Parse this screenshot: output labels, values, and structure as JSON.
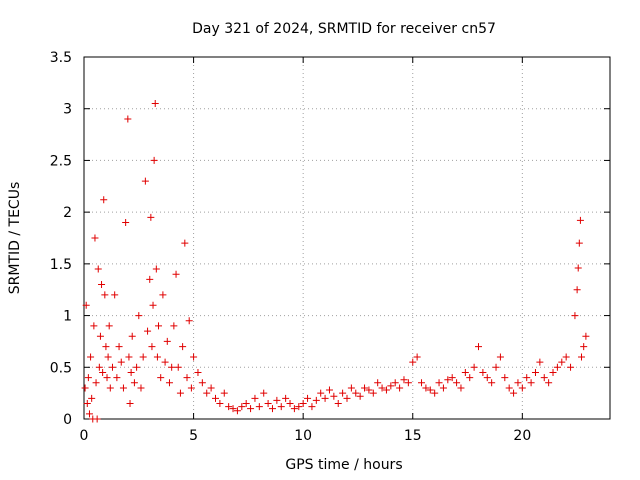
{
  "chart_data": {
    "type": "scatter",
    "title": "Day 321 of 2024, SRMTID for receiver cn57",
    "xlabel": "GPS time / hours",
    "ylabel": "SRMTID / TECUs",
    "xlim": [
      0,
      24
    ],
    "ylim": [
      0,
      3.5
    ],
    "x_ticks": [
      0,
      5,
      10,
      15,
      20
    ],
    "x_tick_labels": [
      "0",
      "5",
      "10",
      "15",
      "20"
    ],
    "y_ticks": [
      0,
      0.5,
      1,
      1.5,
      2,
      2.5,
      3,
      3.5
    ],
    "y_tick_labels": [
      "0",
      "0.5",
      "1",
      "1.5",
      "2",
      "2.5",
      "3",
      "3.5"
    ],
    "grid": true,
    "marker": "+",
    "color": "#e00000",
    "series": [
      {
        "name": "cn57",
        "x": [
          0.05,
          0.1,
          0.15,
          0.2,
          0.25,
          0.3,
          0.35,
          0.4,
          0.45,
          0.5,
          0.55,
          0.6,
          0.65,
          0.7,
          0.75,
          0.8,
          0.85,
          0.9,
          0.95,
          1.0,
          1.05,
          1.1,
          1.15,
          1.2,
          1.3,
          1.4,
          1.5,
          1.6,
          1.7,
          1.8,
          1.9,
          2.0,
          2.05,
          2.1,
          2.15,
          2.2,
          2.3,
          2.4,
          2.5,
          2.6,
          2.7,
          2.8,
          2.9,
          3.0,
          3.05,
          3.1,
          3.15,
          3.2,
          3.25,
          3.3,
          3.35,
          3.4,
          3.5,
          3.6,
          3.7,
          3.8,
          3.9,
          4.0,
          4.1,
          4.2,
          4.3,
          4.4,
          4.5,
          4.6,
          4.7,
          4.8,
          4.9,
          5.0,
          5.2,
          5.4,
          5.6,
          5.8,
          6.0,
          6.2,
          6.4,
          6.6,
          6.8,
          7.0,
          7.2,
          7.4,
          7.6,
          7.8,
          8.0,
          8.2,
          8.4,
          8.6,
          8.8,
          9.0,
          9.2,
          9.4,
          9.6,
          9.8,
          10.0,
          10.2,
          10.4,
          10.6,
          10.8,
          11.0,
          11.2,
          11.4,
          11.6,
          11.8,
          12.0,
          12.2,
          12.4,
          12.6,
          12.8,
          13.0,
          13.2,
          13.4,
          13.6,
          13.8,
          14.0,
          14.2,
          14.4,
          14.6,
          14.8,
          15.0,
          15.2,
          15.4,
          15.6,
          15.8,
          16.0,
          16.2,
          16.4,
          16.6,
          16.8,
          17.0,
          17.2,
          17.4,
          17.6,
          17.8,
          18.0,
          18.2,
          18.4,
          18.6,
          18.8,
          19.0,
          19.2,
          19.4,
          19.6,
          19.8,
          20.0,
          20.2,
          20.4,
          20.6,
          20.8,
          21.0,
          21.2,
          21.4,
          21.6,
          21.8,
          22.0,
          22.2,
          22.4,
          22.5,
          22.55,
          22.6,
          22.65,
          22.7,
          22.8,
          22.9
        ],
        "y": [
          0.3,
          1.1,
          0.15,
          0.4,
          0.05,
          0.6,
          0.2,
          0.0,
          0.9,
          1.75,
          0.35,
          0.0,
          1.45,
          0.5,
          0.8,
          1.3,
          0.45,
          2.12,
          1.2,
          0.7,
          0.4,
          0.6,
          0.9,
          0.3,
          0.5,
          1.2,
          0.4,
          0.7,
          0.55,
          0.3,
          1.9,
          2.9,
          0.6,
          0.15,
          0.45,
          0.8,
          0.35,
          0.5,
          1.0,
          0.3,
          0.6,
          2.3,
          0.85,
          1.35,
          1.95,
          0.7,
          1.1,
          2.5,
          3.05,
          1.45,
          0.6,
          0.9,
          0.4,
          1.2,
          0.55,
          0.75,
          0.35,
          0.5,
          0.9,
          1.4,
          0.5,
          0.25,
          0.7,
          1.7,
          0.4,
          0.95,
          0.3,
          0.6,
          0.45,
          0.35,
          0.25,
          0.3,
          0.2,
          0.15,
          0.25,
          0.12,
          0.1,
          0.08,
          0.12,
          0.15,
          0.1,
          0.2,
          0.12,
          0.25,
          0.15,
          0.1,
          0.18,
          0.12,
          0.2,
          0.15,
          0.1,
          0.12,
          0.15,
          0.2,
          0.12,
          0.18,
          0.25,
          0.2,
          0.28,
          0.22,
          0.15,
          0.25,
          0.2,
          0.3,
          0.25,
          0.22,
          0.3,
          0.28,
          0.25,
          0.35,
          0.3,
          0.28,
          0.32,
          0.35,
          0.3,
          0.38,
          0.35,
          0.55,
          0.6,
          0.35,
          0.3,
          0.28,
          0.25,
          0.35,
          0.3,
          0.38,
          0.4,
          0.35,
          0.3,
          0.45,
          0.4,
          0.5,
          0.7,
          0.45,
          0.4,
          0.35,
          0.5,
          0.6,
          0.4,
          0.3,
          0.25,
          0.35,
          0.3,
          0.4,
          0.35,
          0.45,
          0.55,
          0.4,
          0.35,
          0.45,
          0.5,
          0.55,
          0.6,
          0.5,
          1.0,
          1.25,
          1.46,
          1.7,
          1.92,
          0.6,
          0.7,
          0.8
        ]
      }
    ]
  }
}
